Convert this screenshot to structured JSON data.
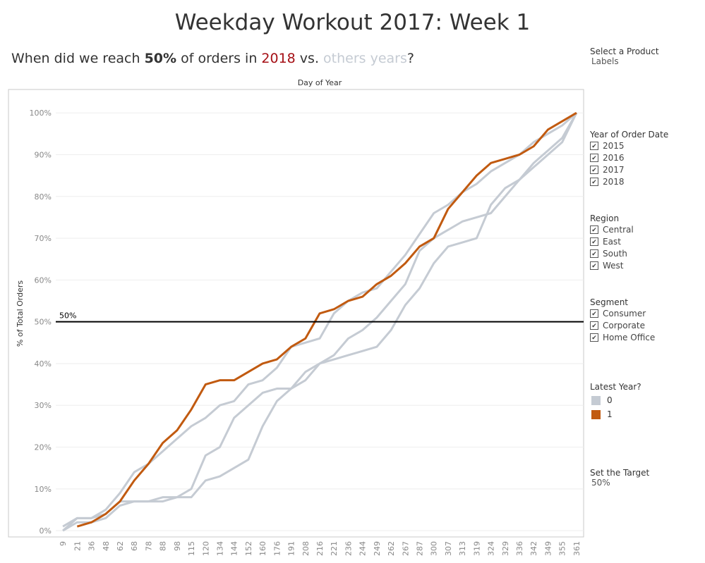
{
  "chart_data": {
    "type": "line",
    "title": "Weekday Workout 2017: Week 1",
    "subtitle_parts": [
      "When did we reach ",
      "50%",
      " of orders in ",
      "2018",
      " vs. ",
      "others years",
      "?"
    ],
    "x_label": "Day of Year",
    "y_label": "% of Total Orders",
    "categories": [
      "9",
      "21",
      "36",
      "48",
      "62",
      "68",
      "78",
      "88",
      "98",
      "115",
      "120",
      "134",
      "144",
      "152",
      "160",
      "176",
      "191",
      "208",
      "216",
      "221",
      "236",
      "244",
      "249",
      "262",
      "267",
      "287",
      "300",
      "307",
      "313",
      "319",
      "324",
      "329",
      "336",
      "342",
      "349",
      "355",
      "361"
    ],
    "series": [
      {
        "color": "#c5cbd3",
        "values": [
          1,
          3,
          3,
          5,
          9,
          14,
          16,
          19,
          22,
          25,
          27,
          30,
          31,
          35,
          36,
          39,
          44,
          45,
          46,
          52,
          55,
          57,
          58,
          62,
          66,
          71,
          76,
          78,
          81,
          83,
          86,
          88,
          90,
          93,
          95,
          97,
          100
        ]
      },
      {
        "color": "#c5cbd3",
        "values": [
          0,
          3,
          3,
          4,
          7,
          7,
          7,
          8,
          8,
          10,
          18,
          20,
          27,
          30,
          33,
          34,
          34,
          36,
          40,
          42,
          46,
          48,
          51,
          55,
          59,
          67,
          70,
          72,
          74,
          75,
          76,
          80,
          84,
          88,
          91,
          94,
          100
        ]
      },
      {
        "color": "#c5cbd3",
        "values": [
          0,
          2,
          2,
          3,
          6,
          7,
          7,
          7,
          8,
          8,
          12,
          13,
          15,
          17,
          25,
          31,
          34,
          38,
          40,
          41,
          42,
          43,
          44,
          48,
          54,
          58,
          64,
          68,
          69,
          70,
          78,
          82,
          84,
          87,
          90,
          93,
          100
        ]
      },
      {
        "color": "#c15a10",
        "values": [
          null,
          1,
          2,
          4,
          7,
          12,
          16,
          21,
          24,
          29,
          35,
          36,
          36,
          38,
          40,
          41,
          44,
          46,
          52,
          53,
          55,
          56,
          59,
          61,
          64,
          68,
          70,
          77,
          81,
          85,
          88,
          89,
          90,
          92,
          96,
          98,
          100
        ]
      }
    ],
    "ylim": [
      -1.5,
      105.6
    ],
    "yticks": [
      {
        "value": 0,
        "label": "0%"
      },
      {
        "value": 10,
        "label": "10%"
      },
      {
        "value": 20,
        "label": "20%"
      },
      {
        "value": 30,
        "label": "30%"
      },
      {
        "value": 40,
        "label": "40%"
      },
      {
        "value": 50,
        "label": "50%"
      },
      {
        "value": 60,
        "label": "60%"
      },
      {
        "value": 70,
        "label": "70%"
      },
      {
        "value": 80,
        "label": "80%"
      },
      {
        "value": 90,
        "label": "90%"
      },
      {
        "value": 100,
        "label": "100%"
      }
    ],
    "grid": true,
    "reference_line": {
      "value": 50,
      "label": "50%"
    },
    "legend": {
      "title": "Latest Year?",
      "items": [
        {
          "label": "0",
          "color": "#c5cbd3"
        },
        {
          "label": "1",
          "color": "#c15a10"
        }
      ]
    }
  },
  "filters": {
    "product": {
      "title": "Select a Product",
      "value": "Labels"
    },
    "year": {
      "title": "Year of Order Date",
      "items": [
        "2015",
        "2016",
        "2017",
        "2018"
      ]
    },
    "region": {
      "title": "Region",
      "items": [
        "Central",
        "East",
        "South",
        "West"
      ]
    },
    "segment": {
      "title": "Segment",
      "items": [
        "Consumer",
        "Corporate",
        "Home Office"
      ]
    },
    "target": {
      "title": "Set the Target",
      "value": "50%"
    }
  }
}
